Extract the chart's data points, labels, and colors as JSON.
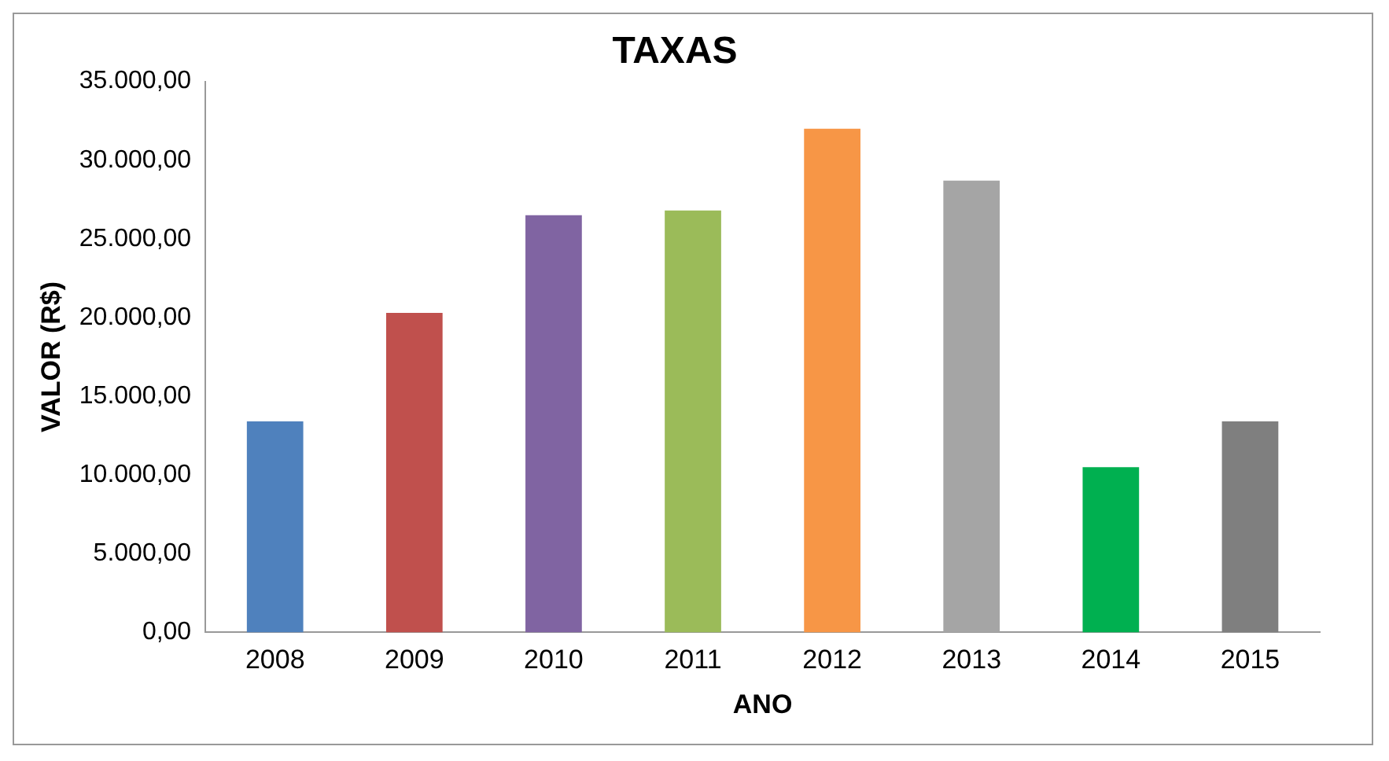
{
  "chart_data": {
    "type": "bar",
    "title": "TAXAS",
    "xlabel": "ANO",
    "ylabel": "VALOR (R$)",
    "categories": [
      "2008",
      "2009",
      "2010",
      "2011",
      "2012",
      "2013",
      "2014",
      "2015"
    ],
    "values": [
      13400,
      20300,
      26500,
      26800,
      32000,
      28700,
      10500,
      13400
    ],
    "colors": [
      "#4f81bd",
      "#c0504d",
      "#8064a2",
      "#9bbb59",
      "#f79646",
      "#a5a5a5",
      "#00b050",
      "#7f7f7f"
    ],
    "ylim": [
      0,
      35000
    ],
    "yticks": [
      {
        "value": 0,
        "label": "0,00"
      },
      {
        "value": 5000,
        "label": "5.000,00"
      },
      {
        "value": 10000,
        "label": "10.000,00"
      },
      {
        "value": 15000,
        "label": "15.000,00"
      },
      {
        "value": 20000,
        "label": "20.000,00"
      },
      {
        "value": 25000,
        "label": "25.000,00"
      },
      {
        "value": 30000,
        "label": "30.000,00"
      },
      {
        "value": 35000,
        "label": "35.000,00"
      }
    ],
    "grid": false,
    "legend": false
  }
}
